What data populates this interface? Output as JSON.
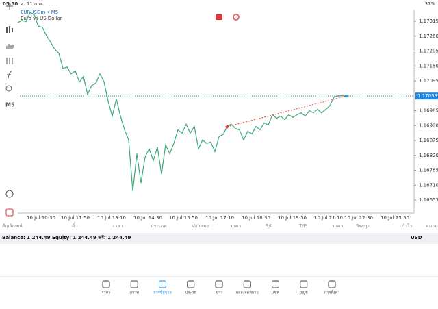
{
  "status_bar": {
    "time": "05:30",
    "date": "ศ. 11 ก.ค.",
    "battery": "37%"
  },
  "toolbar": {
    "timeframe": "M5"
  },
  "chart": {
    "type": "line",
    "symbol": "EURUSDm • M5",
    "description": "Euro vs US Dollar",
    "color": "#3aa878",
    "values": [
      1.1731,
      1.17318,
      1.17313,
      1.17348,
      1.17338,
      1.17297,
      1.17292,
      1.17262,
      1.17237,
      1.17212,
      1.17197,
      1.17141,
      1.17146,
      1.17121,
      1.17131,
      1.17091,
      1.17111,
      1.17045,
      1.17078,
      1.17086,
      1.17121,
      1.17091,
      1.1702,
      1.16965,
      1.17028,
      1.16965,
      1.16914,
      1.16877,
      1.16688,
      1.16826,
      1.16718,
      1.16814,
      1.16844,
      1.16801,
      1.16851,
      1.16751,
      1.16859,
      1.16826,
      1.16864,
      1.16914,
      1.16902,
      1.16935,
      1.16902,
      1.16927,
      1.16844,
      1.16877,
      1.16864,
      1.16869,
      1.16834,
      1.16889,
      1.16897,
      1.16927,
      1.16935,
      1.16919,
      1.16914,
      1.16877,
      1.16909,
      1.16899,
      1.16927,
      1.16914,
      1.1694,
      1.16932,
      1.1697,
      1.16957,
      1.16965,
      1.16952,
      1.1697,
      1.1696,
      1.1697,
      1.16977,
      1.16965,
      1.16985,
      1.16977,
      1.1699,
      1.16977,
      1.1699,
      1.17003,
      1.17035,
      1.1704,
      1.1704,
      1.17039
    ],
    "ylim": [
      1.16607,
      1.17358
    ],
    "yticks": [
      1.17315,
      {
        "value": 1.1726,
        "label": "1.17260"
      },
      1.17205,
      {
        "value": 1.1715,
        "label": "1.17150"
      },
      1.17095,
      1.16985,
      {
        "value": 1.1693,
        "label": "1.16930"
      },
      1.16875,
      {
        "value": 1.1682,
        "label": "1.16820"
      },
      1.16765,
      {
        "value": 1.1671,
        "label": "1.16710"
      },
      1.16655
    ],
    "current_price": 1.17039,
    "x_labels": [
      "10 Jul 10:30",
      "10 Jul 11:50",
      "10 Jul 13:10",
      "10 Jul 14:30",
      "10 Jul 15:50",
      "10 Jul 17:10",
      "10 Jul 18:30",
      "10 Jul 19:50",
      "10 Jul 21:10",
      "10 Jul 22:30",
      "10 Jul 23:50"
    ]
  },
  "table": {
    "headers": [
      "สัญลักษณ์",
      "ตั๋ว",
      "เวลา",
      "ประเภท",
      "Volume",
      "ราคา",
      "S/L",
      "T/P",
      "ราคา",
      "Swap",
      "กำไร",
      "หมายเหตุ"
    ]
  },
  "balance": {
    "text": "Balance: 1 244.49 Equity: 1 244.49 ฟรี: 1 244.49",
    "currency": "USD"
  },
  "nav": {
    "items": [
      "ราคา",
      "กราฟ",
      "การซื้อขาย",
      "ประวัติ",
      "ข่าว",
      "กล่องจดหมาย",
      "แชท",
      "บัญชี",
      "การตั้งค่า"
    ]
  }
}
